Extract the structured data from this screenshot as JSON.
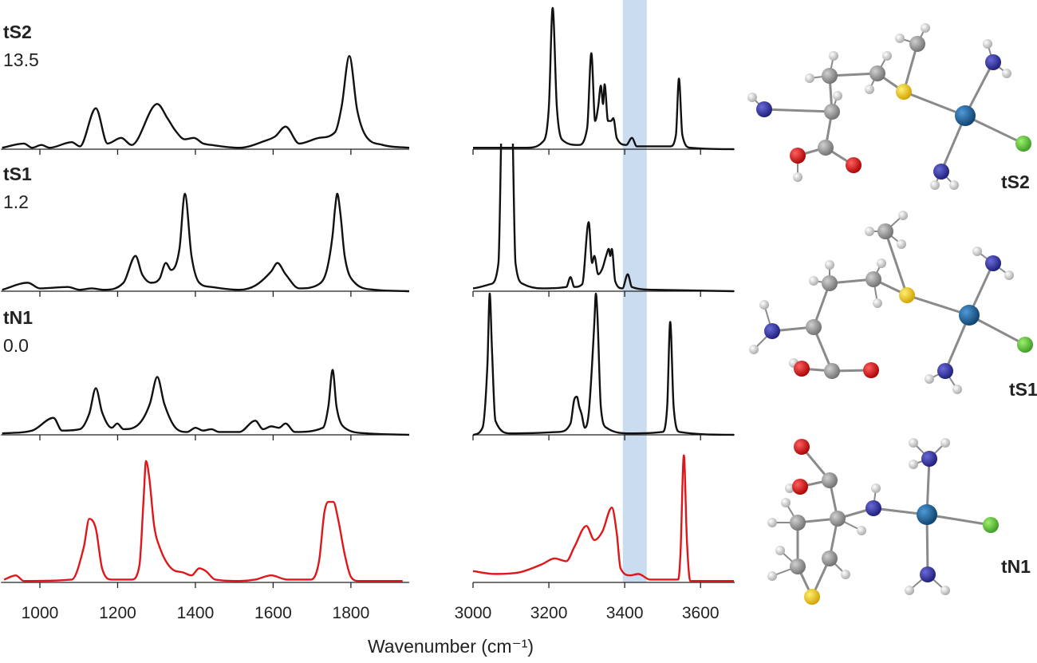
{
  "chart_data": {
    "type": "spectra",
    "x_label": "Wavenumber (cm⁻¹)",
    "ylim": [
      0,
      1
    ],
    "panels": [
      {
        "xlim": [
          900,
          1950
        ],
        "xticks": [
          1000,
          1200,
          1400,
          1600,
          1800
        ]
      },
      {
        "xlim": [
          3000,
          3690
        ],
        "xticks": [
          3000,
          3200,
          3400,
          3600
        ],
        "highlight": [
          3395,
          3458
        ],
        "highlight_color": "#c9dcf0"
      }
    ],
    "series": [
      {
        "name": "tS2",
        "energy": "13.5",
        "color": "#111111",
        "segments": [
          {
            "x": [
              903,
              959,
              980,
              1004,
              1025,
              1082,
              1103,
              1144,
              1174,
              1209,
              1236,
              1302,
              1328,
              1349,
              1373,
              1396,
              1420,
              1441,
              1513,
              1580,
              1605,
              1632,
              1667,
              1718,
              1759,
              1776,
              1796,
              1816,
              1837,
              1882,
              1950
            ],
            "y": [
              0.01,
              0.04,
              0.01,
              0.03,
              0.01,
              0.05,
              0.02,
              0.29,
              0.04,
              0.08,
              0.03,
              0.32,
              0.22,
              0.13,
              0.07,
              0.08,
              0.04,
              0.03,
              0.01,
              0.06,
              0.09,
              0.16,
              0.04,
              0.08,
              0.12,
              0.3,
              0.66,
              0.28,
              0.1,
              0.03,
              0.01
            ]
          },
          {
            "x": [
              3000,
              3141,
              3183,
              3200,
              3210,
              3221,
              3238,
              3278,
              3301,
              3312,
              3322,
              3330,
              3337,
              3343,
              3347,
              3356,
              3364,
              3370,
              3379,
              3404,
              3419,
              3432,
              3520,
              3535,
              3543,
              3552,
              3573,
              3688
            ],
            "y": [
              0.01,
              0.01,
              0.05,
              0.3,
              1.0,
              0.3,
              0.06,
              0.03,
              0.15,
              0.68,
              0.2,
              0.3,
              0.45,
              0.32,
              0.46,
              0.2,
              0.2,
              0.22,
              0.08,
              0.03,
              0.08,
              0.02,
              0.02,
              0.1,
              0.5,
              0.1,
              0.01,
              0
            ]
          }
        ]
      },
      {
        "name": "tS1",
        "energy": "1.2",
        "color": "#111111",
        "segments": [
          {
            "x": [
              903,
              969,
              1000,
              1072,
              1103,
              1133,
              1164,
              1215,
              1246,
              1263,
              1287,
              1308,
              1324,
              1338,
              1359,
              1373,
              1390,
              1410,
              1441,
              1513,
              1554,
              1595,
              1611,
              1632,
              1667,
              1718,
              1738,
              1753,
              1759,
              1765,
              1773,
              1784,
              1810,
              1861,
              1950
            ],
            "y": [
              0.01,
              0.06,
              0.02,
              0.03,
              0.01,
              0.02,
              0.01,
              0.06,
              0.25,
              0.12,
              0.06,
              0.09,
              0.2,
              0.15,
              0.3,
              0.69,
              0.25,
              0.06,
              0.03,
              0.01,
              0.04,
              0.14,
              0.2,
              0.12,
              0.02,
              0.05,
              0.15,
              0.4,
              0.58,
              0.69,
              0.55,
              0.25,
              0.06,
              0.01,
              0
            ]
          },
          {
            "x": [
              3000,
              3046,
              3067,
              3078,
              3086,
              3095,
              3101,
              3112,
              3133,
              3183,
              3246,
              3257,
              3267,
              3288,
              3305,
              3314,
              3320,
              3330,
              3341,
              3352,
              3358,
              3362,
              3366,
              3375,
              3394,
              3408,
              3419,
              3478,
              3688
            ],
            "y": [
              0.02,
              0.05,
              0.2,
              1.4,
              1.2,
              1.2,
              1.4,
              0.2,
              0.05,
              0.02,
              0.03,
              0.1,
              0.03,
              0.05,
              0.49,
              0.2,
              0.25,
              0.12,
              0.16,
              0.26,
              0.3,
              0.25,
              0.3,
              0.07,
              0.02,
              0.12,
              0.03,
              0.01,
              0
            ]
          }
        ]
      },
      {
        "name": "tN1",
        "energy": "0.0",
        "color": "#111111",
        "segments": [
          {
            "x": [
              903,
              980,
              1035,
              1057,
              1103,
              1127,
              1144,
              1160,
              1185,
              1199,
              1215,
              1256,
              1283,
              1302,
              1320,
              1349,
              1379,
              1400,
              1420,
              1441,
              1461,
              1513,
              1554,
              1574,
              1595,
              1615,
              1632,
              1656,
              1728,
              1742,
              1753,
              1763,
              1784,
              1841,
              1950
            ],
            "y": [
              0.01,
              0.03,
              0.12,
              0.03,
              0.04,
              0.15,
              0.33,
              0.16,
              0.05,
              0.08,
              0.04,
              0.08,
              0.22,
              0.41,
              0.22,
              0.05,
              0.02,
              0.05,
              0.03,
              0.04,
              0.02,
              0.02,
              0.1,
              0.04,
              0.06,
              0.05,
              0.08,
              0.02,
              0.05,
              0.2,
              0.46,
              0.2,
              0.05,
              0.01,
              0
            ]
          },
          {
            "x": [
              3000,
              3025,
              3038,
              3044,
              3050,
              3059,
              3099,
              3225,
              3257,
              3267,
              3274,
              3280,
              3286,
              3295,
              3305,
              3314,
              3320,
              3324,
              3328,
              3337,
              3352,
              3415,
              3499,
              3512,
              3520,
              3529,
              3545,
              3688
            ],
            "y": [
              0,
              0.05,
              0.5,
              1.0,
              0.6,
              0.1,
              0.01,
              0.02,
              0.08,
              0.25,
              0.27,
              0.2,
              0.15,
              0.05,
              0.15,
              0.5,
              0.8,
              1.0,
              0.85,
              0.2,
              0.05,
              0.01,
              0.02,
              0.2,
              0.8,
              0.2,
              0.02,
              0
            ]
          }
        ]
      },
      {
        "color": "#e0161b",
        "segments": [
          {
            "x": [
              908,
              938,
              959,
              1082,
              1113,
              1127,
              1144,
              1160,
              1185,
              1236,
              1256,
              1267,
              1273,
              1281,
              1294,
              1308,
              1338,
              1369,
              1390,
              1410,
              1427,
              1451,
              1513,
              1554,
              1595,
              1636,
              1697,
              1718,
              1732,
              1742,
              1755,
              1767,
              1784,
              1800,
              1821,
              1933
            ],
            "y": [
              0.02,
              0.05,
              0.01,
              0.02,
              0.25,
              0.45,
              0.38,
              0.1,
              0.02,
              0.02,
              0.12,
              0.6,
              0.86,
              0.75,
              0.4,
              0.25,
              0.1,
              0.07,
              0.05,
              0.1,
              0.08,
              0.02,
              0.01,
              0.02,
              0.05,
              0.02,
              0.02,
              0.15,
              0.5,
              0.57,
              0.57,
              0.45,
              0.2,
              0.04,
              0.01,
              0.01
            ]
          },
          {
            "x": [
              3000,
              3057,
              3120,
              3183,
              3215,
              3246,
              3267,
              3299,
              3320,
              3341,
              3366,
              3379,
              3389,
              3415,
              3436,
              3467,
              3541,
              3547,
              3556,
              3564,
              3573,
              3688
            ],
            "y": [
              0.08,
              0.06,
              0.07,
              0.13,
              0.17,
              0.15,
              0.25,
              0.4,
              0.3,
              0.36,
              0.53,
              0.35,
              0.1,
              0.05,
              0.06,
              0.02,
              0.02,
              0.2,
              0.9,
              0.3,
              0.01,
              0.01
            ]
          }
        ]
      }
    ]
  }
}
